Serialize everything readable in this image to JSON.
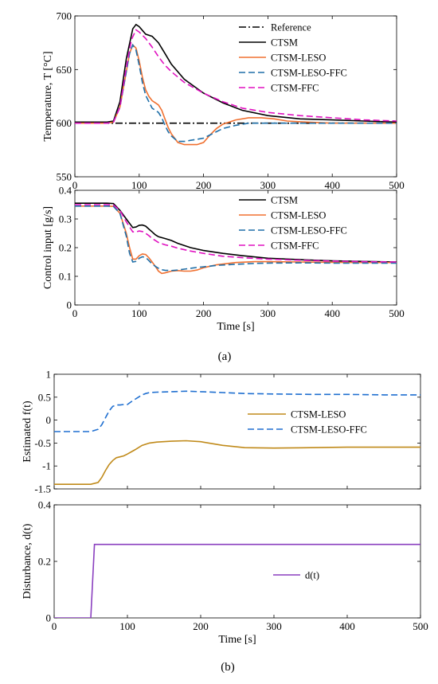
{
  "figure": {
    "caption_a": "(a)",
    "caption_b": "(b)"
  },
  "chart_data": [
    {
      "type": "line",
      "panel": "a-top",
      "ylabel": "Temperature, T [°C]",
      "xlabel": "",
      "xlim": [
        0,
        500
      ],
      "ylim": [
        550,
        700
      ],
      "xticks": [
        0,
        100,
        200,
        300,
        400,
        500
      ],
      "yticks": [
        550,
        600,
        650,
        700
      ],
      "show_xtick_labels": true,
      "grid": false,
      "legend_position": "top-right",
      "series": [
        {
          "name": "Reference",
          "color": "#000000",
          "style": "dashdot",
          "x": [
            0,
            500
          ],
          "y": [
            600,
            600
          ]
        },
        {
          "name": "CTSM",
          "color": "#000000",
          "style": "solid",
          "x": [
            0,
            50,
            60,
            70,
            80,
            90,
            95,
            100,
            110,
            120,
            130,
            140,
            150,
            170,
            200,
            230,
            260,
            300,
            350,
            400,
            450,
            500
          ],
          "y": [
            601,
            601,
            602,
            620,
            660,
            688,
            692,
            690,
            683,
            681,
            675,
            665,
            655,
            641,
            628,
            619,
            612,
            607,
            604,
            603,
            602,
            601
          ]
        },
        {
          "name": "CTSM-LESO",
          "color": "#f07030",
          "style": "solid",
          "x": [
            0,
            50,
            60,
            70,
            80,
            85,
            90,
            95,
            100,
            105,
            110,
            115,
            120,
            125,
            130,
            135,
            140,
            145,
            150,
            160,
            170,
            180,
            190,
            200,
            210,
            220,
            230,
            250,
            270,
            290,
            310,
            330,
            360,
            400,
            450,
            500
          ],
          "y": [
            600,
            600,
            601,
            615,
            648,
            665,
            673,
            670,
            658,
            643,
            631,
            625,
            621,
            619,
            617,
            612,
            604,
            596,
            590,
            582,
            580,
            580,
            580,
            582,
            589,
            595,
            599,
            603,
            605,
            605,
            604,
            602,
            601,
            600,
            600,
            600
          ]
        },
        {
          "name": "CTSM-LESO-FFC",
          "color": "#1f6fa8",
          "style": "dashed",
          "x": [
            0,
            50,
            60,
            70,
            80,
            85,
            90,
            95,
            100,
            105,
            110,
            115,
            120,
            125,
            130,
            135,
            140,
            145,
            150,
            160,
            170,
            180,
            190,
            200,
            210,
            220,
            230,
            250,
            270,
            290,
            310,
            330,
            360,
            400,
            450,
            500
          ],
          "y": [
            600,
            600,
            601,
            615,
            648,
            665,
            673,
            668,
            654,
            638,
            626,
            620,
            614,
            612,
            610,
            605,
            598,
            592,
            588,
            583,
            583,
            584,
            585,
            586,
            589,
            592,
            595,
            598,
            600,
            600,
            600,
            600,
            600,
            600,
            600,
            600
          ]
        },
        {
          "name": "CTSM-FFC",
          "color": "#e010c0",
          "style": "dashed",
          "x": [
            0,
            50,
            60,
            70,
            80,
            88,
            95,
            100,
            110,
            120,
            130,
            140,
            150,
            170,
            200,
            230,
            260,
            300,
            350,
            400,
            450,
            500
          ],
          "y": [
            600,
            600,
            601,
            615,
            652,
            678,
            687,
            685,
            679,
            671,
            662,
            654,
            648,
            638,
            628,
            620,
            614,
            610,
            607,
            605,
            603,
            602
          ]
        }
      ]
    },
    {
      "type": "line",
      "panel": "a-bottom",
      "ylabel": "Control input [g/s]",
      "xlabel": "Time [s]",
      "xlim": [
        0,
        500
      ],
      "ylim": [
        0,
        0.4
      ],
      "xticks": [
        0,
        100,
        200,
        300,
        400,
        500
      ],
      "yticks": [
        0,
        0.1,
        0.2,
        0.3,
        0.4
      ],
      "show_xtick_labels": true,
      "grid": false,
      "legend_position": "top-right",
      "series": [
        {
          "name": "CTSM",
          "color": "#000000",
          "style": "solid",
          "x": [
            0,
            50,
            60,
            70,
            80,
            90,
            95,
            100,
            105,
            110,
            115,
            120,
            125,
            130,
            140,
            150,
            160,
            180,
            200,
            230,
            260,
            300,
            350,
            400,
            450,
            500
          ],
          "y": [
            0.355,
            0.355,
            0.354,
            0.33,
            0.3,
            0.27,
            0.272,
            0.278,
            0.279,
            0.275,
            0.265,
            0.255,
            0.245,
            0.238,
            0.232,
            0.225,
            0.215,
            0.2,
            0.19,
            0.18,
            0.172,
            0.163,
            0.158,
            0.154,
            0.152,
            0.15
          ]
        },
        {
          "name": "CTSM-LESO",
          "color": "#f07030",
          "style": "solid",
          "x": [
            0,
            50,
            60,
            70,
            80,
            85,
            90,
            95,
            100,
            105,
            110,
            115,
            120,
            125,
            130,
            135,
            140,
            150,
            160,
            170,
            180,
            190,
            200,
            220,
            250,
            280,
            300,
            350,
            400,
            450,
            500
          ],
          "y": [
            0.345,
            0.345,
            0.344,
            0.32,
            0.25,
            0.2,
            0.16,
            0.16,
            0.172,
            0.178,
            0.176,
            0.165,
            0.15,
            0.135,
            0.118,
            0.11,
            0.112,
            0.118,
            0.12,
            0.118,
            0.118,
            0.122,
            0.13,
            0.14,
            0.148,
            0.151,
            0.151,
            0.15,
            0.149,
            0.148,
            0.148
          ]
        },
        {
          "name": "CTSM-LESO-FFC",
          "color": "#1f6fa8",
          "style": "dashed",
          "x": [
            0,
            50,
            60,
            70,
            80,
            85,
            90,
            95,
            100,
            105,
            110,
            115,
            120,
            125,
            130,
            135,
            140,
            150,
            160,
            170,
            180,
            190,
            200,
            220,
            250,
            280,
            300,
            350,
            400,
            450,
            500
          ],
          "y": [
            0.345,
            0.345,
            0.344,
            0.32,
            0.24,
            0.18,
            0.15,
            0.152,
            0.163,
            0.168,
            0.166,
            0.155,
            0.143,
            0.135,
            0.128,
            0.123,
            0.121,
            0.12,
            0.122,
            0.125,
            0.128,
            0.131,
            0.133,
            0.138,
            0.142,
            0.145,
            0.146,
            0.147,
            0.146,
            0.146,
            0.146
          ]
        },
        {
          "name": "CTSM-FFC",
          "color": "#e010c0",
          "style": "dashed",
          "x": [
            0,
            50,
            60,
            70,
            80,
            90,
            95,
            100,
            105,
            110,
            115,
            120,
            130,
            140,
            150,
            160,
            180,
            200,
            230,
            260,
            300,
            350,
            400,
            450,
            500
          ],
          "y": [
            0.35,
            0.35,
            0.349,
            0.33,
            0.29,
            0.255,
            0.255,
            0.258,
            0.256,
            0.25,
            0.242,
            0.232,
            0.218,
            0.21,
            0.205,
            0.198,
            0.188,
            0.18,
            0.17,
            0.165,
            0.16,
            0.156,
            0.153,
            0.151,
            0.15
          ]
        }
      ]
    },
    {
      "type": "line",
      "panel": "b-top",
      "ylabel": "Estimated f(t)",
      "xlabel": "",
      "xlim": [
        0,
        500
      ],
      "ylim": [
        -1.5,
        1
      ],
      "xticks": [
        0,
        100,
        200,
        300,
        400,
        500
      ],
      "yticks": [
        -1.5,
        -1,
        -0.5,
        0,
        0.5,
        1
      ],
      "show_xtick_labels": false,
      "grid": false,
      "legend_position": "center-right",
      "series": [
        {
          "name": "CTSM-LESO",
          "color": "#c08a1a",
          "style": "solid",
          "x": [
            0,
            50,
            60,
            65,
            70,
            75,
            80,
            85,
            90,
            95,
            100,
            110,
            120,
            130,
            140,
            160,
            180,
            200,
            230,
            260,
            300,
            350,
            400,
            450,
            500
          ],
          "y": [
            -1.4,
            -1.4,
            -1.36,
            -1.25,
            -1.1,
            -0.97,
            -0.88,
            -0.82,
            -0.8,
            -0.78,
            -0.74,
            -0.65,
            -0.55,
            -0.5,
            -0.48,
            -0.46,
            -0.45,
            -0.47,
            -0.55,
            -0.6,
            -0.61,
            -0.6,
            -0.59,
            -0.59,
            -0.59
          ]
        },
        {
          "name": "CTSM-LESO-FFC",
          "color": "#1f6fd0",
          "style": "dashed",
          "x": [
            0,
            50,
            60,
            65,
            70,
            75,
            80,
            85,
            90,
            95,
            100,
            105,
            110,
            115,
            120,
            125,
            130,
            140,
            160,
            180,
            200,
            230,
            260,
            300,
            350,
            400,
            450,
            500
          ],
          "y": [
            -0.25,
            -0.25,
            -0.2,
            -0.1,
            0.05,
            0.2,
            0.3,
            0.33,
            0.33,
            0.34,
            0.34,
            0.4,
            0.45,
            0.5,
            0.55,
            0.58,
            0.6,
            0.61,
            0.62,
            0.63,
            0.62,
            0.6,
            0.58,
            0.57,
            0.56,
            0.56,
            0.55,
            0.55
          ]
        }
      ]
    },
    {
      "type": "line",
      "panel": "b-bottom",
      "ylabel": "Disturbance, d(t)",
      "xlabel": "Time [s]",
      "xlim": [
        0,
        500
      ],
      "ylim": [
        0,
        0.4
      ],
      "xticks": [
        0,
        100,
        200,
        300,
        400,
        500
      ],
      "yticks": [
        0,
        0.2,
        0.4
      ],
      "show_xtick_labels": true,
      "grid": false,
      "legend_position": "center-right",
      "series": [
        {
          "name": "d(t)",
          "color": "#8a3fbf",
          "style": "solid",
          "x": [
            0,
            50,
            55,
            500
          ],
          "y": [
            0,
            0,
            0.26,
            0.26
          ]
        }
      ]
    }
  ]
}
